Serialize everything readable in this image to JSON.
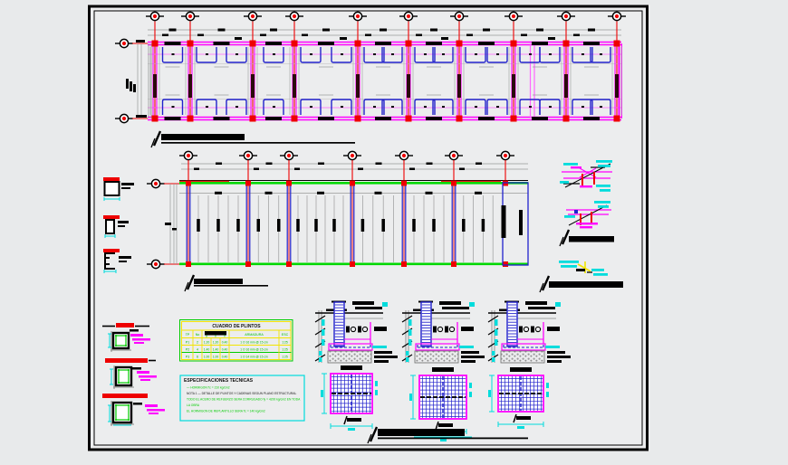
{
  "sheet": {
    "background": "#ecedee",
    "frame_color": "#000000"
  },
  "colors": {
    "grid_red": "#ee0000",
    "beam_magenta": "#ff00ff",
    "light_pink": "#ff66ff",
    "footing_blue": "#2222cc",
    "slab_green": "#00d800",
    "annotation_cyan": "#00dcdc",
    "detail_yellow": "#f2e400",
    "table_text_green": "#00bb00",
    "line_black": "#000000",
    "line_gray": "#9a9a9a",
    "wall_maroon": "#2a0a0a"
  },
  "plinth_table": {
    "title": "CUADRO  DE  PLINTOS",
    "col_headers": {
      "tp": "TP",
      "num": "No",
      "dim_a": "a",
      "dim_b": "b",
      "dim_h": "h",
      "rebar": "ARMADURA",
      "esc": "ESC"
    },
    "rows": [
      {
        "tp": "P1",
        "num": "2",
        "a": "1.20",
        "b": "1.20",
        "h": "0.40",
        "rebar": "1 O 16 mm @ 15 cm",
        "esc": "1:25"
      },
      {
        "tp": "P2",
        "num": "4",
        "a": "1.40",
        "b": "1.40",
        "h": "0.40",
        "rebar": "1 O 16 mm @ 15 cm",
        "esc": "1:25"
      },
      {
        "tp": "P3",
        "num": "6",
        "a": "1.00",
        "b": "1.00",
        "h": "0.40",
        "rebar": "1 O 14 mm @ 15 cm",
        "esc": "1:25"
      }
    ]
  },
  "spec_box": {
    "title": "ESPECIFICACIONES TECNICAS",
    "lines": [
      {
        "text": "— HORMIGON  f'c = 210 kg/cm2",
        "color": "green"
      },
      {
        "text": "NOTA 1 — DETALLE DE PLINTOS Y CADENAS SEGUN PLANO ESTRUCTURAL",
        "color": "black"
      },
      {
        "text": "TODO EL ACERO DE REFUERZO SERA CORRUGADO  fy = 4200 kg/cm2  EN TODA",
        "color": "green"
      },
      {
        "text": "LA OBRA",
        "color": "green"
      },
      {
        "text": "EL HORMIGON DE REPLANTILLO SERA  f'c = 140 kg/cm2",
        "color": "green"
      }
    ]
  }
}
